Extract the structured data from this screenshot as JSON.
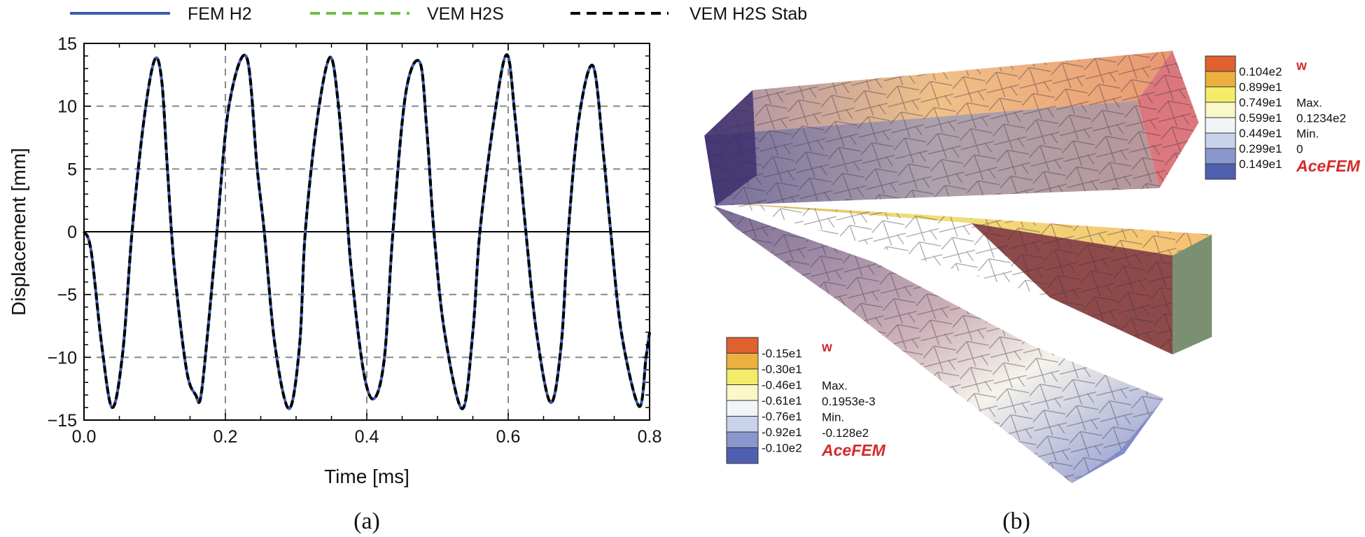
{
  "chart_data": {
    "type": "line",
    "title": "",
    "xlabel": "Time [ms]",
    "ylabel": "Displacement [mm]",
    "xlim": [
      0,
      0.8
    ],
    "ylim": [
      -15,
      15
    ],
    "xticks": [
      "0.0",
      "0.2",
      "0.4",
      "0.6",
      "0.8"
    ],
    "yticks": [
      "15",
      "10",
      "5",
      "0",
      "-5",
      "-10",
      "-15"
    ],
    "xtick_values": [
      0,
      0.2,
      0.4,
      0.6,
      0.8
    ],
    "ytick_values": [
      15,
      10,
      5,
      0,
      -5,
      -10,
      -15
    ],
    "grid": "dashed at major ticks",
    "legend_placement": "top",
    "series": [
      {
        "name": "FEM H2",
        "color": "#3a5bb0",
        "style": "solid"
      },
      {
        "name": "VEM H2S",
        "color": "#6cc04a",
        "style": "dashed"
      },
      {
        "name": "VEM H2S Stab",
        "color": "#000000",
        "style": "dashed"
      }
    ],
    "x": [
      0,
      0.01,
      0.025,
      0.04,
      0.055,
      0.068,
      0.085,
      0.1,
      0.11,
      0.118,
      0.128,
      0.145,
      0.158,
      0.165,
      0.175,
      0.188,
      0.205,
      0.23,
      0.245,
      0.255,
      0.27,
      0.29,
      0.305,
      0.313,
      0.33,
      0.348,
      0.36,
      0.37,
      0.378,
      0.395,
      0.41,
      0.425,
      0.437,
      0.455,
      0.475,
      0.485,
      0.495,
      0.51,
      0.535,
      0.55,
      0.56,
      0.58,
      0.598,
      0.61,
      0.625,
      0.64,
      0.66,
      0.675,
      0.685,
      0.7,
      0.72,
      0.735,
      0.745,
      0.76,
      0.785,
      0.795,
      0.8
    ],
    "y": [
      0,
      -1.5,
      -9,
      -14,
      -9.5,
      0,
      9,
      13.7,
      12,
      5,
      -3,
      -11,
      -13,
      -13.2,
      -8,
      0,
      10,
      13.9,
      5,
      0,
      -9,
      -14.1,
      -9,
      0,
      9,
      13.9,
      10,
      3,
      -3,
      -11,
      -13.3,
      -10,
      0,
      11,
      13.5,
      8,
      0,
      -8,
      -14.1,
      -8,
      0,
      9,
      14.1,
      9,
      0,
      -8,
      -13.6,
      -9,
      0,
      9,
      13.2,
      6,
      0,
      -8,
      -13.9,
      -10,
      -8
    ]
  },
  "captions": {
    "a": "(a)",
    "b": "(b)"
  },
  "colorbar_top": {
    "variable": "w",
    "labels": [
      "0.104e2",
      "0.899e1",
      "0.749e1",
      "0.599e1",
      "0.449e1",
      "0.299e1",
      "0.149e1"
    ],
    "max_label": "Max.",
    "max_value": "0.1234e2",
    "min_label": "Min.",
    "min_value": "0",
    "brand": "AceFEM"
  },
  "colorbar_bottom": {
    "variable": "w",
    "labels": [
      "-0.15e1",
      "-0.30e1",
      "-0.46e1",
      "-0.61e1",
      "-0.76e1",
      "-0.92e1",
      "-0.10e2"
    ],
    "max_label": "Max.",
    "max_value": "0.1953e-3",
    "min_label": "Min.",
    "min_value": "-0.128e2",
    "brand": "AceFEM"
  },
  "colorbar_colors": [
    "#e06030",
    "#ecb040",
    "#f2ec68",
    "#faf7c8",
    "#f2f5f8",
    "#c8d2ea",
    "#8898cc",
    "#5060b0"
  ]
}
